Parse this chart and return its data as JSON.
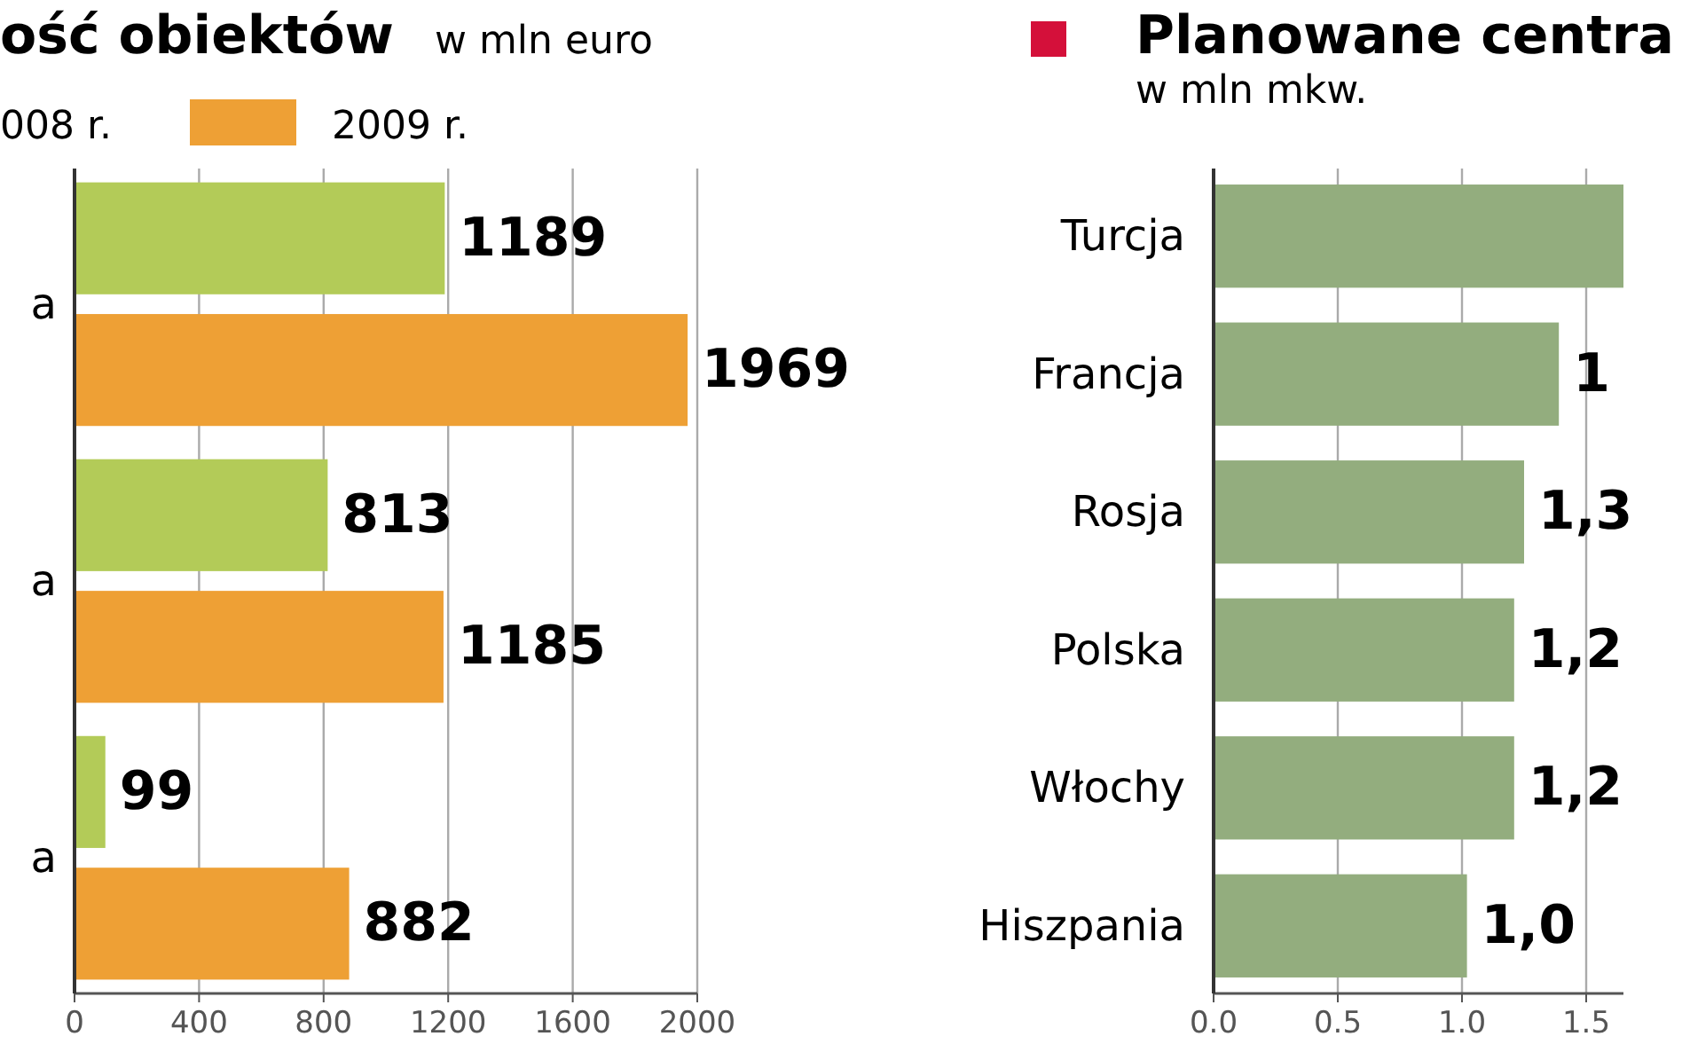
{
  "chart_data": [
    {
      "type": "bar",
      "orientation": "horizontal",
      "title": "ość obiektów",
      "subtitle": "w mln euro",
      "categories": [
        "a",
        "a",
        "a"
      ],
      "series": [
        {
          "name": "008 r.",
          "color": "#b3cb58",
          "values": [
            1189,
            813,
            99
          ]
        },
        {
          "name": "2009 r.",
          "color": "#eea035",
          "values": [
            1969,
            1185,
            882
          ]
        }
      ],
      "xlim": [
        0,
        2000
      ],
      "xticks": [
        0,
        400,
        800,
        1200,
        1600,
        2000
      ],
      "grid": "x",
      "legend": "top left",
      "data_labels": true
    },
    {
      "type": "bar",
      "orientation": "horizontal",
      "title": "Planowane centra",
      "subtitle": "w mln mkw.",
      "categories": [
        "Turcja",
        "Francja",
        "Rosja",
        "Polska",
        "Włochy",
        "Hiszpania"
      ],
      "series": [
        {
          "color": "#93ad7e",
          "values": [
            1.65,
            1.39,
            1.25,
            1.21,
            1.21,
            1.02
          ],
          "value_labels": [
            null,
            "1",
            "1,3",
            "1,2",
            "1,2",
            "1,0"
          ]
        }
      ],
      "xlim": [
        0,
        1.65
      ],
      "xticks": [
        {
          "value": 0,
          "label": "0.0"
        },
        {
          "value": 0.5,
          "label": "0.5"
        },
        {
          "value": 1,
          "label": "1.0"
        },
        {
          "value": 1.5,
          "label": "1.5"
        }
      ],
      "grid": "x",
      "legend": false
    }
  ]
}
